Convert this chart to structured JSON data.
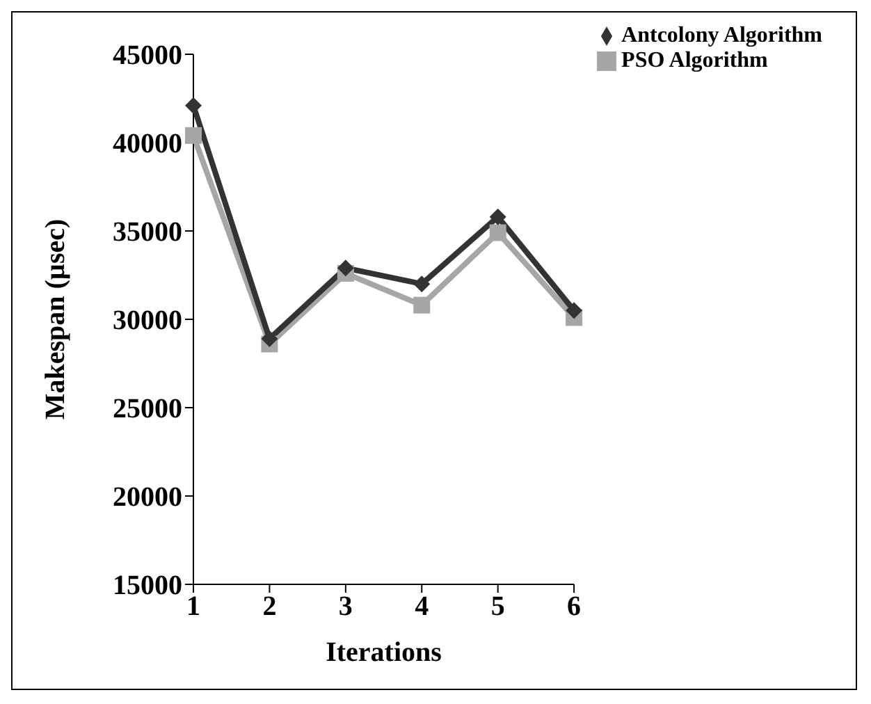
{
  "chart_data": {
    "type": "line",
    "xlabel": "Iterations",
    "ylabel": "Makespan (µsec)",
    "categories": [
      "1",
      "2",
      "3",
      "4",
      "5",
      "6"
    ],
    "series": [
      {
        "name": "Antcolony Algorithm",
        "color": "#333333",
        "marker": "diamond",
        "values": [
          42100,
          28900,
          32900,
          32000,
          35800,
          30500
        ]
      },
      {
        "name": "PSO Algorithm",
        "color": "#a6a6a6",
        "marker": "square",
        "values": [
          40400,
          28600,
          32600,
          30800,
          34900,
          30100
        ]
      }
    ],
    "ylim": [
      15000,
      45000
    ],
    "yticks": [
      15000,
      20000,
      25000,
      30000,
      35000,
      40000,
      45000
    ],
    "grid": false,
    "legend": "top right",
    "line_style": "solid"
  }
}
